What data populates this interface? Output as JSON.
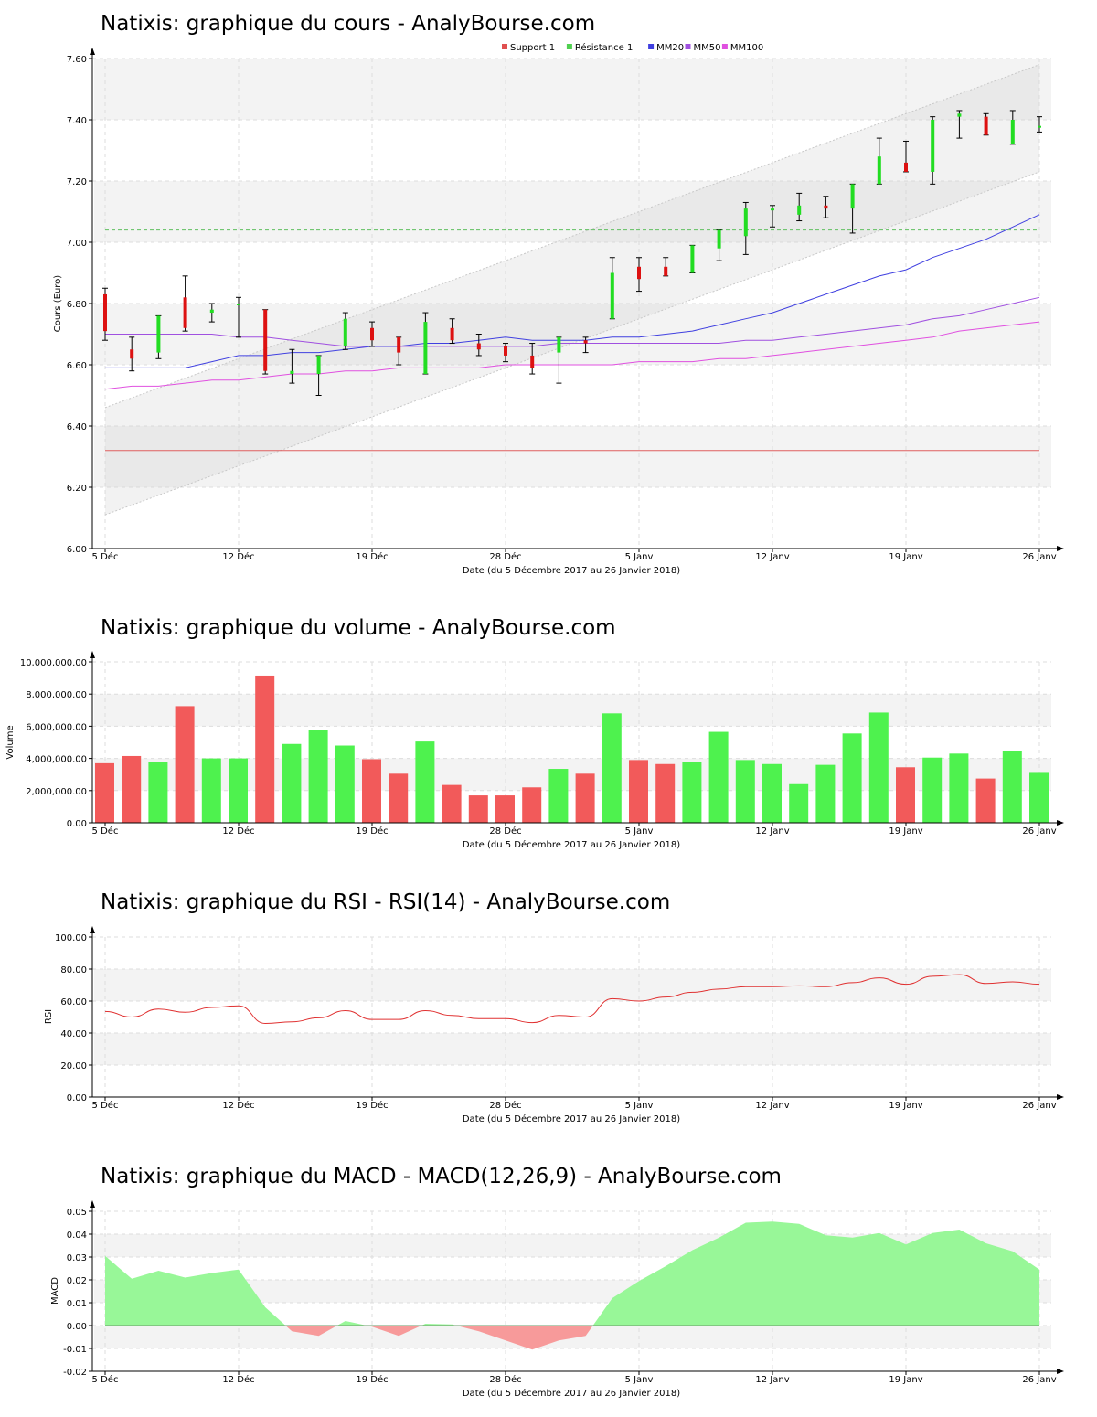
{
  "charts": {
    "price": {
      "title": "Natixis: graphique du cours - AnalyBourse.com",
      "ylabel": "Cours (Euro)",
      "xlabel": "Date (du 5 Décembre 2017 au 26 Janvier 2018)"
    },
    "volume": {
      "title": "Natixis: graphique du volume - AnalyBourse.com",
      "ylabel": "Volume",
      "xlabel": "Date (du 5 Décembre 2017 au 26 Janvier 2018)"
    },
    "rsi": {
      "title": "Natixis: graphique du RSI - RSI(14) - AnalyBourse.com",
      "ylabel": "RSI",
      "xlabel": "Date (du 5 Décembre 2017 au 26 Janvier 2018)"
    },
    "macd": {
      "title": "Natixis: graphique du MACD - MACD(12,26,9) - AnalyBourse.com",
      "ylabel": "MACD",
      "xlabel": "Date (du 5 Décembre 2017 au 26 Janvier 2018)"
    }
  },
  "legend": [
    {
      "label": "Support 1",
      "color": "#e05050"
    },
    {
      "label": "Résistance 1",
      "color": "#50d050"
    },
    {
      "label": "MM20",
      "color": "#4040e0"
    },
    {
      "label": "MM50",
      "color": "#a050e0"
    },
    {
      "label": "MM100",
      "color": "#e050e0"
    }
  ],
  "chart_data": [
    {
      "type": "candlestick",
      "title": "Natixis: graphique du cours - AnalyBourse.com",
      "ylabel": "Cours (Euro)",
      "xlabel": "Date (du 5 Décembre 2017 au 26 Janvier 2018)",
      "ylim": [
        6.0,
        7.6
      ],
      "yticks": [
        "6.00",
        "6.20",
        "6.40",
        "6.60",
        "6.80",
        "7.00",
        "7.20",
        "7.40",
        "7.60"
      ],
      "x_tick_labels": [
        "5 Déc",
        "12 Déc",
        "19 Déc",
        "28 Déc",
        "5 Janv",
        "12 Janv",
        "19 Janv",
        "26 Janv"
      ],
      "x_tick_index": [
        0,
        5,
        10,
        15,
        20,
        25,
        30,
        35
      ],
      "candles": [
        {
          "o": 6.83,
          "h": 6.85,
          "l": 6.68,
          "c": 6.71
        },
        {
          "o": 6.65,
          "h": 6.69,
          "l": 6.58,
          "c": 6.62
        },
        {
          "o": 6.64,
          "h": 6.76,
          "l": 6.62,
          "c": 6.76
        },
        {
          "o": 6.82,
          "h": 6.89,
          "l": 6.71,
          "c": 6.72
        },
        {
          "o": 6.77,
          "h": 6.8,
          "l": 6.74,
          "c": 6.78
        },
        {
          "o": 6.8,
          "h": 6.82,
          "l": 6.69,
          "c": 6.8
        },
        {
          "o": 6.78,
          "h": 6.78,
          "l": 6.57,
          "c": 6.58
        },
        {
          "o": 6.57,
          "h": 6.65,
          "l": 6.54,
          "c": 6.58
        },
        {
          "o": 6.57,
          "h": 6.63,
          "l": 6.5,
          "c": 6.63
        },
        {
          "o": 6.66,
          "h": 6.77,
          "l": 6.65,
          "c": 6.75
        },
        {
          "o": 6.72,
          "h": 6.74,
          "l": 6.66,
          "c": 6.68
        },
        {
          "o": 6.69,
          "h": 6.69,
          "l": 6.6,
          "c": 6.64
        },
        {
          "o": 6.57,
          "h": 6.77,
          "l": 6.57,
          "c": 6.74
        },
        {
          "o": 6.72,
          "h": 6.75,
          "l": 6.67,
          "c": 6.68
        },
        {
          "o": 6.67,
          "h": 6.7,
          "l": 6.63,
          "c": 6.65
        },
        {
          "o": 6.66,
          "h": 6.67,
          "l": 6.61,
          "c": 6.63
        },
        {
          "o": 6.63,
          "h": 6.67,
          "l": 6.57,
          "c": 6.59
        },
        {
          "o": 6.64,
          "h": 6.69,
          "l": 6.54,
          "c": 6.69
        },
        {
          "o": 6.68,
          "h": 6.69,
          "l": 6.64,
          "c": 6.67
        },
        {
          "o": 6.75,
          "h": 6.95,
          "l": 6.75,
          "c": 6.9
        },
        {
          "o": 6.92,
          "h": 6.95,
          "l": 6.84,
          "c": 6.88
        },
        {
          "o": 6.92,
          "h": 6.95,
          "l": 6.89,
          "c": 6.89
        },
        {
          "o": 6.9,
          "h": 6.99,
          "l": 6.9,
          "c": 6.99
        },
        {
          "o": 6.98,
          "h": 7.04,
          "l": 6.94,
          "c": 7.04
        },
        {
          "o": 7.02,
          "h": 7.13,
          "l": 6.96,
          "c": 7.11
        },
        {
          "o": 7.11,
          "h": 7.12,
          "l": 7.05,
          "c": 7.11
        },
        {
          "o": 7.09,
          "h": 7.16,
          "l": 7.07,
          "c": 7.12
        },
        {
          "o": 7.12,
          "h": 7.15,
          "l": 7.08,
          "c": 7.11
        },
        {
          "o": 7.11,
          "h": 7.19,
          "l": 7.03,
          "c": 7.19
        },
        {
          "o": 7.19,
          "h": 7.34,
          "l": 7.19,
          "c": 7.28
        },
        {
          "o": 7.26,
          "h": 7.33,
          "l": 7.23,
          "c": 7.23
        },
        {
          "o": 7.23,
          "h": 7.41,
          "l": 7.19,
          "c": 7.4
        },
        {
          "o": 7.41,
          "h": 7.43,
          "l": 7.34,
          "c": 7.42
        },
        {
          "o": 7.41,
          "h": 7.42,
          "l": 7.35,
          "c": 7.35
        },
        {
          "o": 7.32,
          "h": 7.43,
          "l": 7.32,
          "c": 7.4
        },
        {
          "o": 7.38,
          "h": 7.41,
          "l": 7.36,
          "c": 7.38
        }
      ],
      "support_1": 6.32,
      "resistance_1": 7.04,
      "mm20": [
        6.59,
        6.59,
        6.59,
        6.59,
        6.61,
        6.63,
        6.63,
        6.64,
        6.64,
        6.65,
        6.66,
        6.66,
        6.67,
        6.67,
        6.68,
        6.69,
        6.68,
        6.68,
        6.68,
        6.69,
        6.69,
        6.7,
        6.71,
        6.73,
        6.75,
        6.77,
        6.8,
        6.83,
        6.86,
        6.89,
        6.91,
        6.95,
        6.98,
        7.01,
        7.05,
        7.09
      ],
      "mm50": [
        6.7,
        6.7,
        6.7,
        6.7,
        6.7,
        6.69,
        6.69,
        6.68,
        6.67,
        6.66,
        6.66,
        6.66,
        6.66,
        6.66,
        6.66,
        6.66,
        6.66,
        6.67,
        6.67,
        6.67,
        6.67,
        6.67,
        6.67,
        6.67,
        6.68,
        6.68,
        6.69,
        6.7,
        6.71,
        6.72,
        6.73,
        6.75,
        6.76,
        6.78,
        6.8,
        6.82
      ],
      "mm100": [
        6.52,
        6.53,
        6.53,
        6.54,
        6.55,
        6.55,
        6.56,
        6.57,
        6.57,
        6.58,
        6.58,
        6.59,
        6.59,
        6.59,
        6.59,
        6.6,
        6.6,
        6.6,
        6.6,
        6.6,
        6.61,
        6.61,
        6.61,
        6.62,
        6.62,
        6.63,
        6.64,
        6.65,
        6.66,
        6.67,
        6.68,
        6.69,
        6.71,
        6.72,
        6.73,
        6.74
      ],
      "trend_channel": {
        "upper": [
          6.46,
          7.58
        ],
        "lower": [
          6.11,
          7.23
        ]
      }
    },
    {
      "type": "bar",
      "title": "Natixis: graphique du volume - AnalyBourse.com",
      "ylabel": "Volume",
      "xlabel": "Date (du 5 Décembre 2017 au 26 Janvier 2018)",
      "ylim": [
        0,
        10000000
      ],
      "yticks": [
        "0.00",
        "2,000,000.00",
        "4,000,000.00",
        "6,000,000.00",
        "8,000,000.00",
        "10,000,000.00"
      ],
      "x_tick_labels": [
        "5 Déc",
        "12 Déc",
        "19 Déc",
        "28 Déc",
        "5 Janv",
        "12 Janv",
        "19 Janv",
        "26 Janv"
      ],
      "x_tick_index": [
        0,
        5,
        10,
        15,
        20,
        25,
        30,
        35
      ],
      "values": [
        3700000,
        4150000,
        3750000,
        7250000,
        4000000,
        4000000,
        9150000,
        4900000,
        5750000,
        4800000,
        3950000,
        3050000,
        5050000,
        2350000,
        1700000,
        1700000,
        2200000,
        3350000,
        3050000,
        6800000,
        3900000,
        3650000,
        3800000,
        5650000,
        3900000,
        3650000,
        2400000,
        3600000,
        5550000,
        6850000,
        3450000,
        4050000,
        4300000,
        2750000,
        4450000,
        3100000
      ],
      "colors": [
        "red",
        "red",
        "green",
        "red",
        "green",
        "green",
        "red",
        "green",
        "green",
        "green",
        "red",
        "red",
        "green",
        "red",
        "red",
        "red",
        "red",
        "green",
        "red",
        "green",
        "red",
        "red",
        "green",
        "green",
        "green",
        "green",
        "green",
        "green",
        "green",
        "green",
        "red",
        "green",
        "green",
        "red",
        "green",
        "green"
      ]
    },
    {
      "type": "line",
      "title": "Natixis: graphique du RSI - RSI(14) - AnalyBourse.com",
      "ylabel": "RSI",
      "xlabel": "Date (du 5 Décembre 2017 au 26 Janvier 2018)",
      "ylim": [
        0,
        100
      ],
      "yticks": [
        "0.00",
        "20.00",
        "40.00",
        "60.00",
        "80.00",
        "100.00"
      ],
      "x_tick_labels": [
        "5 Déc",
        "12 Déc",
        "19 Déc",
        "28 Déc",
        "5 Janv",
        "12 Janv",
        "19 Janv",
        "26 Janv"
      ],
      "x_tick_index": [
        0,
        5,
        10,
        15,
        20,
        25,
        30,
        35
      ],
      "reference_line": 50,
      "values": [
        53.5,
        50,
        55,
        53,
        56,
        57,
        46,
        47,
        49.5,
        54,
        48.5,
        48.5,
        54,
        51,
        49,
        49,
        46.5,
        51,
        50,
        61.5,
        60,
        62.5,
        65.5,
        67.5,
        69,
        69,
        69.5,
        69,
        71.5,
        74.5,
        70.5,
        75.5,
        76.5,
        71,
        72,
        70.5
      ]
    },
    {
      "type": "area",
      "title": "Natixis: graphique du MACD - MACD(12,26,9) - AnalyBourse.com",
      "ylabel": "MACD",
      "xlabel": "Date (du 5 Décembre 2017 au 26 Janvier 2018)",
      "ylim": [
        -0.02,
        0.05
      ],
      "yticks": [
        "-0.02",
        "-0.01",
        "0.00",
        "0.01",
        "0.02",
        "0.03",
        "0.04",
        "0.05"
      ],
      "x_tick_labels": [
        "5 Déc",
        "12 Déc",
        "19 Déc",
        "28 Déc",
        "5 Janv",
        "12 Janv",
        "19 Janv",
        "26 Janv"
      ],
      "x_tick_index": [
        0,
        5,
        10,
        15,
        20,
        25,
        30,
        35
      ],
      "values": [
        0.0305,
        0.0205,
        0.024,
        0.021,
        0.023,
        0.0245,
        0.008,
        -0.0025,
        -0.0045,
        0.002,
        -0.0005,
        -0.0045,
        0.0008,
        0.0005,
        -0.0025,
        -0.0065,
        -0.0105,
        -0.0065,
        -0.0045,
        0.012,
        0.0195,
        0.026,
        0.033,
        0.0385,
        0.045,
        0.0455,
        0.0445,
        0.0395,
        0.0385,
        0.0405,
        0.0355,
        0.0405,
        0.042,
        0.036,
        0.0325,
        0.0245
      ]
    }
  ]
}
